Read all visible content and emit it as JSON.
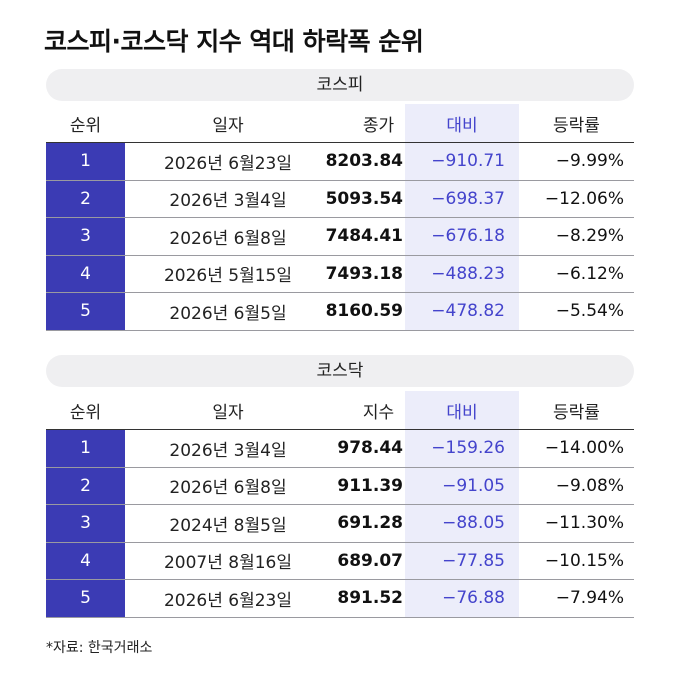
{
  "title": "코스피·코스닥 지수 역대 하락폭 순위",
  "kospi": {
    "section_label": "코스피",
    "headers": {
      "rank": "순위",
      "date": "일자",
      "close": "종가",
      "diff": "대비",
      "pct": "등락률"
    },
    "rows": [
      {
        "rank": "1",
        "date": "2026년 6월23일",
        "close": "8203.84",
        "diff": "−910.71",
        "pct": "−9.99%"
      },
      {
        "rank": "2",
        "date": "2026년 3월4일",
        "close": "5093.54",
        "diff": "−698.37",
        "pct": "−12.06%"
      },
      {
        "rank": "3",
        "date": "2026년 6월8일",
        "close": "7484.41",
        "diff": "−676.18",
        "pct": "−8.29%"
      },
      {
        "rank": "4",
        "date": "2026년 5월15일",
        "close": "7493.18",
        "diff": "−488.23",
        "pct": "−6.12%"
      },
      {
        "rank": "5",
        "date": "2026년 6월5일",
        "close": "8160.59",
        "diff": "−478.82",
        "pct": "−5.54%"
      }
    ]
  },
  "kosdaq": {
    "section_label": "코스닥",
    "headers": {
      "rank": "순위",
      "date": "일자",
      "close": "지수",
      "diff": "대비",
      "pct": "등락률"
    },
    "rows": [
      {
        "rank": "1",
        "date": "2026년 3월4일",
        "close": "978.44",
        "diff": "−159.26",
        "pct": "−14.00%"
      },
      {
        "rank": "2",
        "date": "2026년 6월8일",
        "close": "911.39",
        "diff": "−91.05",
        "pct": "−9.08%"
      },
      {
        "rank": "3",
        "date": "2024년 8월5일",
        "close": "691.28",
        "diff": "−88.05",
        "pct": "−11.30%"
      },
      {
        "rank": "4",
        "date": "2007년 8월16일",
        "close": "689.07",
        "diff": "−77.85",
        "pct": "−10.15%"
      },
      {
        "rank": "5",
        "date": "2026년 6월23일",
        "close": "891.52",
        "diff": "−76.88",
        "pct": "−7.94%"
      }
    ]
  },
  "source": "*자료: 한국거래소",
  "colors": {
    "rank_bg": "#3b3bb4",
    "diff_text": "#4444cc",
    "diff_bg": "#ecedfa",
    "pill_bg": "#efeff1"
  }
}
